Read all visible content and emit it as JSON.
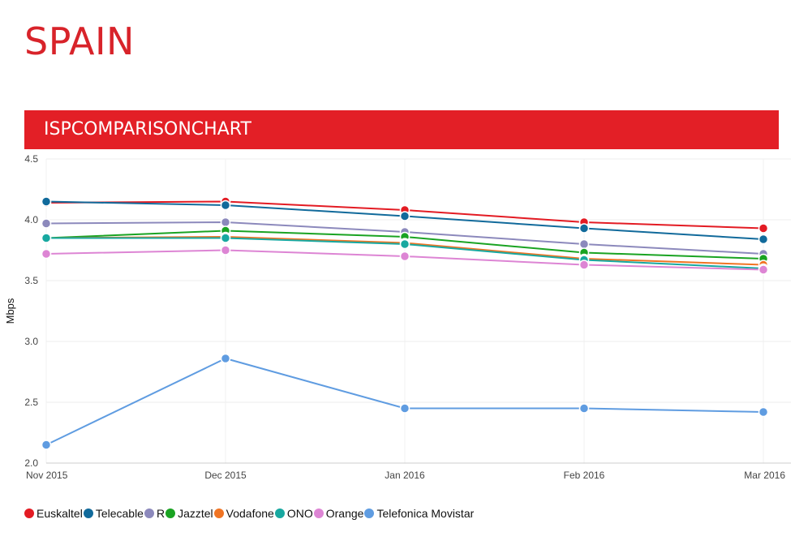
{
  "page": {
    "title": "SPAIN"
  },
  "banner": {
    "title": "ISPCOMPARISONCHART"
  },
  "chart_data": {
    "type": "line",
    "title": "ISPCOMPARISONCHART",
    "xlabel": "",
    "ylabel": "Mbps",
    "categories": [
      "Nov 2015",
      "Dec 2015",
      "Jan 2016",
      "Feb 2016",
      "Mar 2016"
    ],
    "ylim": [
      2.0,
      4.5
    ],
    "yticks": [
      "2.0",
      "2.5",
      "3.0",
      "3.5",
      "4.0",
      "4.5"
    ],
    "grid": true,
    "legend_position": "bottom-left",
    "series": [
      {
        "name": "Euskaltel",
        "color": "#e31b23",
        "values": [
          4.14,
          4.15,
          4.08,
          3.98,
          3.93
        ]
      },
      {
        "name": "Telecable",
        "color": "#116a9b",
        "values": [
          4.15,
          4.12,
          4.03,
          3.93,
          3.84
        ]
      },
      {
        "name": "R",
        "color": "#8c89bc",
        "values": [
          3.97,
          3.98,
          3.9,
          3.8,
          3.72
        ]
      },
      {
        "name": "Jazztel",
        "color": "#1aa322",
        "values": [
          3.85,
          3.91,
          3.86,
          3.73,
          3.68
        ]
      },
      {
        "name": "Vodafone",
        "color": "#f07423",
        "values": [
          3.85,
          3.86,
          3.81,
          3.68,
          3.63
        ]
      },
      {
        "name": "ONO",
        "color": "#18a8a0",
        "values": [
          3.85,
          3.85,
          3.8,
          3.67,
          3.6
        ]
      },
      {
        "name": "Orange",
        "color": "#dd85d4",
        "values": [
          3.72,
          3.75,
          3.7,
          3.63,
          3.59
        ]
      },
      {
        "name": "Telefonica Movistar",
        "color": "#5f9ce1",
        "values": [
          2.15,
          2.86,
          2.45,
          2.45,
          2.42
        ]
      }
    ]
  }
}
